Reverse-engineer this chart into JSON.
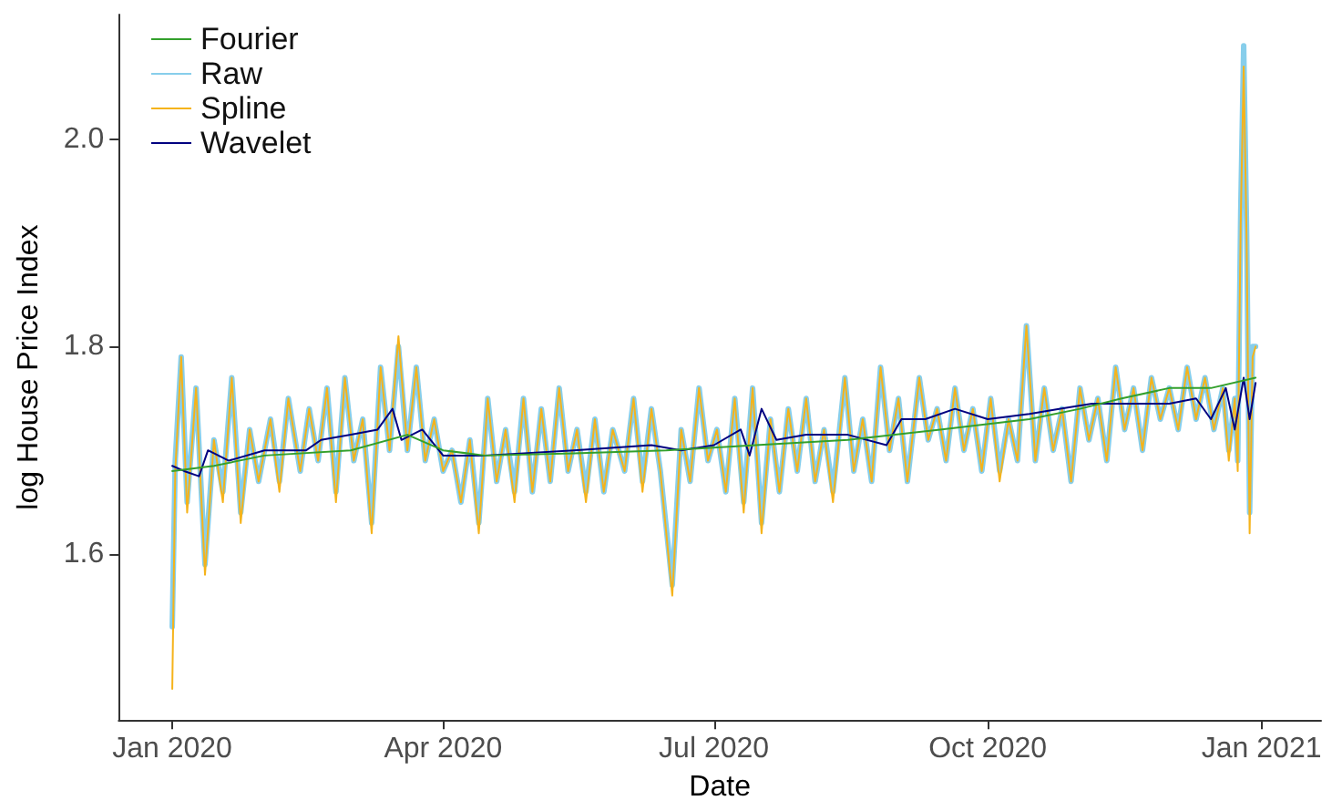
{
  "chart_data": {
    "type": "line",
    "xlabel": "Date",
    "ylabel": "log House Price Index",
    "xlim": [
      "2019-12-14",
      "2021-01-21"
    ],
    "ylim": [
      1.44,
      2.12
    ],
    "xticks": [
      {
        "value": "2020-01-01",
        "label": "Jan 2020"
      },
      {
        "value": "2020-04-01",
        "label": "Apr 2020"
      },
      {
        "value": "2020-07-01",
        "label": "Jul 2020"
      },
      {
        "value": "2020-10-01",
        "label": "Oct 2020"
      },
      {
        "value": "2021-01-01",
        "label": "Jan 2021"
      }
    ],
    "yticks": [
      1.6,
      1.8,
      {
        "value": 2,
        "label": "2.0"
      }
    ],
    "grid": false,
    "legend": "top left",
    "marker": "none",
    "line_style": "solid",
    "series": [
      {
        "name": "Fourier",
        "color": "#33a02c",
        "x": [
          "2020-01-01",
          "2020-01-15",
          "2020-02-01",
          "2020-03-01",
          "2020-03-20",
          "2020-04-01",
          "2020-04-15",
          "2020-05-15",
          "2020-06-15",
          "2020-07-15",
          "2020-08-15",
          "2020-09-15",
          "2020-10-15",
          "2020-11-01",
          "2020-11-15",
          "2020-12-01",
          "2020-12-15",
          "2020-12-30"
        ],
        "values": [
          1.68,
          1.685,
          1.695,
          1.7,
          1.715,
          1.7,
          1.695,
          1.697,
          1.7,
          1.705,
          1.71,
          1.72,
          1.73,
          1.74,
          1.75,
          1.76,
          1.76,
          1.77
        ]
      },
      {
        "name": "Raw",
        "color": "#87ceeb",
        "x": [
          "2020-01-01",
          "2020-01-02",
          "2020-01-04",
          "2020-01-06",
          "2020-01-09",
          "2020-01-12",
          "2020-01-15",
          "2020-01-18",
          "2020-01-21",
          "2020-01-24",
          "2020-01-27",
          "2020-01-30",
          "2020-02-03",
          "2020-02-06",
          "2020-02-09",
          "2020-02-13",
          "2020-02-16",
          "2020-02-19",
          "2020-02-22",
          "2020-02-25",
          "2020-02-28",
          "2020-03-02",
          "2020-03-05",
          "2020-03-08",
          "2020-03-11",
          "2020-03-14",
          "2020-03-17",
          "2020-03-20",
          "2020-03-23",
          "2020-03-26",
          "2020-03-29",
          "2020-04-01",
          "2020-04-04",
          "2020-04-07",
          "2020-04-10",
          "2020-04-13",
          "2020-04-16",
          "2020-04-19",
          "2020-04-22",
          "2020-04-25",
          "2020-04-28",
          "2020-05-01",
          "2020-05-04",
          "2020-05-07",
          "2020-05-10",
          "2020-05-13",
          "2020-05-16",
          "2020-05-19",
          "2020-05-22",
          "2020-05-25",
          "2020-05-28",
          "2020-06-01",
          "2020-06-04",
          "2020-06-07",
          "2020-06-10",
          "2020-06-13",
          "2020-06-17",
          "2020-06-20",
          "2020-06-23",
          "2020-06-26",
          "2020-06-29",
          "2020-07-02",
          "2020-07-05",
          "2020-07-08",
          "2020-07-11",
          "2020-07-14",
          "2020-07-17",
          "2020-07-20",
          "2020-07-23",
          "2020-07-26",
          "2020-07-29",
          "2020-08-01",
          "2020-08-04",
          "2020-08-07",
          "2020-08-10",
          "2020-08-14",
          "2020-08-17",
          "2020-08-20",
          "2020-08-23",
          "2020-08-26",
          "2020-08-29",
          "2020-09-01",
          "2020-09-04",
          "2020-09-08",
          "2020-09-11",
          "2020-09-14",
          "2020-09-17",
          "2020-09-20",
          "2020-09-23",
          "2020-09-26",
          "2020-09-29",
          "2020-10-02",
          "2020-10-05",
          "2020-10-08",
          "2020-10-11",
          "2020-10-14",
          "2020-10-17",
          "2020-10-20",
          "2020-10-23",
          "2020-10-26",
          "2020-10-29",
          "2020-11-01",
          "2020-11-04",
          "2020-11-07",
          "2020-11-10",
          "2020-11-13",
          "2020-11-16",
          "2020-11-19",
          "2020-11-22",
          "2020-11-25",
          "2020-11-28",
          "2020-12-01",
          "2020-12-04",
          "2020-12-07",
          "2020-12-10",
          "2020-12-13",
          "2020-12-16",
          "2020-12-19",
          "2020-12-21",
          "2020-12-23",
          "2020-12-24",
          "2020-12-25",
          "2020-12-26",
          "2020-12-27",
          "2020-12-28",
          "2020-12-29",
          "2020-12-30"
        ],
        "values": [
          1.53,
          1.69,
          1.79,
          1.65,
          1.76,
          1.59,
          1.71,
          1.66,
          1.77,
          1.64,
          1.72,
          1.67,
          1.73,
          1.67,
          1.75,
          1.68,
          1.74,
          1.69,
          1.76,
          1.66,
          1.77,
          1.69,
          1.73,
          1.63,
          1.78,
          1.7,
          1.8,
          1.7,
          1.78,
          1.69,
          1.73,
          1.68,
          1.7,
          1.65,
          1.71,
          1.63,
          1.75,
          1.67,
          1.72,
          1.66,
          1.75,
          1.66,
          1.74,
          1.67,
          1.76,
          1.68,
          1.72,
          1.66,
          1.73,
          1.66,
          1.72,
          1.68,
          1.75,
          1.67,
          1.74,
          1.68,
          1.57,
          1.72,
          1.67,
          1.76,
          1.69,
          1.72,
          1.66,
          1.75,
          1.65,
          1.76,
          1.63,
          1.73,
          1.66,
          1.74,
          1.68,
          1.75,
          1.67,
          1.72,
          1.66,
          1.77,
          1.68,
          1.73,
          1.67,
          1.78,
          1.7,
          1.75,
          1.67,
          1.77,
          1.71,
          1.74,
          1.69,
          1.76,
          1.7,
          1.74,
          1.68,
          1.75,
          1.68,
          1.73,
          1.69,
          1.82,
          1.69,
          1.76,
          1.7,
          1.74,
          1.67,
          1.76,
          1.71,
          1.75,
          1.69,
          1.78,
          1.72,
          1.76,
          1.7,
          1.77,
          1.73,
          1.76,
          1.72,
          1.78,
          1.73,
          1.77,
          1.72,
          1.76,
          1.7,
          1.75,
          1.69,
          1.93,
          2.09,
          1.91,
          1.64,
          1.8,
          1.8
        ]
      },
      {
        "name": "Spline",
        "color": "#f5b31b",
        "x": [
          "2020-01-01",
          "2020-01-02",
          "2020-01-04",
          "2020-01-06",
          "2020-01-09",
          "2020-01-12",
          "2020-01-15",
          "2020-01-18",
          "2020-01-21",
          "2020-01-24",
          "2020-01-27",
          "2020-01-30",
          "2020-02-03",
          "2020-02-06",
          "2020-02-09",
          "2020-02-13",
          "2020-02-16",
          "2020-02-19",
          "2020-02-22",
          "2020-02-25",
          "2020-02-28",
          "2020-03-02",
          "2020-03-05",
          "2020-03-08",
          "2020-03-11",
          "2020-03-14",
          "2020-03-17",
          "2020-03-20",
          "2020-03-23",
          "2020-03-26",
          "2020-03-29",
          "2020-04-01",
          "2020-04-04",
          "2020-04-07",
          "2020-04-10",
          "2020-04-13",
          "2020-04-16",
          "2020-04-19",
          "2020-04-22",
          "2020-04-25",
          "2020-04-28",
          "2020-05-01",
          "2020-05-04",
          "2020-05-07",
          "2020-05-10",
          "2020-05-13",
          "2020-05-16",
          "2020-05-19",
          "2020-05-22",
          "2020-05-25",
          "2020-05-28",
          "2020-06-01",
          "2020-06-04",
          "2020-06-07",
          "2020-06-10",
          "2020-06-13",
          "2020-06-17",
          "2020-06-20",
          "2020-06-23",
          "2020-06-26",
          "2020-06-29",
          "2020-07-02",
          "2020-07-05",
          "2020-07-08",
          "2020-07-11",
          "2020-07-14",
          "2020-07-17",
          "2020-07-20",
          "2020-07-23",
          "2020-07-26",
          "2020-07-29",
          "2020-08-01",
          "2020-08-04",
          "2020-08-07",
          "2020-08-10",
          "2020-08-14",
          "2020-08-17",
          "2020-08-20",
          "2020-08-23",
          "2020-08-26",
          "2020-08-29",
          "2020-09-01",
          "2020-09-04",
          "2020-09-08",
          "2020-09-11",
          "2020-09-14",
          "2020-09-17",
          "2020-09-20",
          "2020-09-23",
          "2020-09-26",
          "2020-09-29",
          "2020-10-02",
          "2020-10-05",
          "2020-10-08",
          "2020-10-11",
          "2020-10-14",
          "2020-10-17",
          "2020-10-20",
          "2020-10-23",
          "2020-10-26",
          "2020-10-29",
          "2020-11-01",
          "2020-11-04",
          "2020-11-07",
          "2020-11-10",
          "2020-11-13",
          "2020-11-16",
          "2020-11-19",
          "2020-11-22",
          "2020-11-25",
          "2020-11-28",
          "2020-12-01",
          "2020-12-04",
          "2020-12-07",
          "2020-12-10",
          "2020-12-13",
          "2020-12-16",
          "2020-12-19",
          "2020-12-21",
          "2020-12-23",
          "2020-12-24",
          "2020-12-25",
          "2020-12-26",
          "2020-12-27",
          "2020-12-28",
          "2020-12-29",
          "2020-12-30"
        ],
        "values": [
          1.47,
          1.68,
          1.79,
          1.64,
          1.76,
          1.58,
          1.71,
          1.65,
          1.77,
          1.63,
          1.72,
          1.67,
          1.73,
          1.66,
          1.75,
          1.68,
          1.74,
          1.69,
          1.76,
          1.65,
          1.77,
          1.69,
          1.73,
          1.62,
          1.78,
          1.7,
          1.81,
          1.7,
          1.78,
          1.69,
          1.73,
          1.68,
          1.7,
          1.65,
          1.71,
          1.62,
          1.75,
          1.67,
          1.72,
          1.65,
          1.75,
          1.66,
          1.74,
          1.67,
          1.76,
          1.68,
          1.72,
          1.65,
          1.73,
          1.66,
          1.72,
          1.68,
          1.75,
          1.66,
          1.74,
          1.68,
          1.56,
          1.72,
          1.67,
          1.76,
          1.69,
          1.72,
          1.66,
          1.75,
          1.64,
          1.76,
          1.62,
          1.73,
          1.66,
          1.74,
          1.68,
          1.75,
          1.67,
          1.72,
          1.65,
          1.77,
          1.68,
          1.73,
          1.67,
          1.78,
          1.7,
          1.75,
          1.67,
          1.77,
          1.71,
          1.74,
          1.69,
          1.76,
          1.7,
          1.74,
          1.68,
          1.75,
          1.67,
          1.73,
          1.69,
          1.82,
          1.69,
          1.76,
          1.7,
          1.74,
          1.67,
          1.76,
          1.71,
          1.75,
          1.69,
          1.78,
          1.72,
          1.76,
          1.7,
          1.77,
          1.73,
          1.76,
          1.72,
          1.78,
          1.73,
          1.77,
          1.72,
          1.76,
          1.69,
          1.75,
          1.68,
          1.92,
          2.07,
          1.9,
          1.62,
          1.79,
          1.8
        ]
      },
      {
        "name": "Wavelet",
        "color": "#000080",
        "x": [
          "2020-01-01",
          "2020-01-05",
          "2020-01-10",
          "2020-01-13",
          "2020-01-20",
          "2020-02-01",
          "2020-02-15",
          "2020-02-20",
          "2020-03-01",
          "2020-03-10",
          "2020-03-15",
          "2020-03-18",
          "2020-03-25",
          "2020-04-01",
          "2020-04-15",
          "2020-05-15",
          "2020-06-10",
          "2020-06-20",
          "2020-07-01",
          "2020-07-10",
          "2020-07-13",
          "2020-07-17",
          "2020-07-22",
          "2020-08-01",
          "2020-08-15",
          "2020-08-28",
          "2020-09-02",
          "2020-09-10",
          "2020-09-20",
          "2020-10-01",
          "2020-10-15",
          "2020-10-25",
          "2020-11-05",
          "2020-11-20",
          "2020-12-01",
          "2020-12-10",
          "2020-12-15",
          "2020-12-20",
          "2020-12-23",
          "2020-12-26",
          "2020-12-28",
          "2020-12-30"
        ],
        "values": [
          1.685,
          1.68,
          1.675,
          1.7,
          1.69,
          1.7,
          1.7,
          1.71,
          1.715,
          1.72,
          1.74,
          1.71,
          1.72,
          1.695,
          1.695,
          1.7,
          1.705,
          1.7,
          1.705,
          1.72,
          1.695,
          1.74,
          1.71,
          1.715,
          1.715,
          1.705,
          1.73,
          1.73,
          1.74,
          1.73,
          1.735,
          1.74,
          1.745,
          1.745,
          1.745,
          1.75,
          1.73,
          1.76,
          1.72,
          1.77,
          1.73,
          1.765
        ]
      }
    ]
  }
}
